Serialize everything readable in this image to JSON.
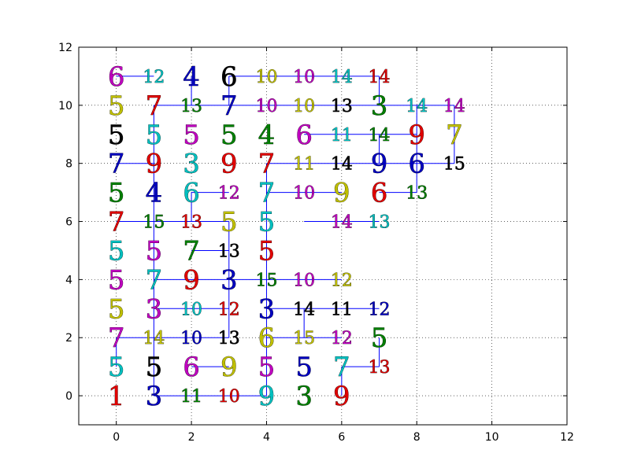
{
  "chart_data": {
    "type": "scatter",
    "title": "",
    "xlabel": "",
    "ylabel": "",
    "xlim": [
      -1,
      12
    ],
    "ylim": [
      -1,
      12
    ],
    "xticks": [
      0,
      2,
      4,
      6,
      8,
      10,
      12
    ],
    "yticks": [
      0,
      2,
      4,
      6,
      8,
      10,
      12
    ],
    "x_tick_labels": [
      "0",
      "2",
      "4",
      "6",
      "8",
      "10",
      "12"
    ],
    "y_tick_labels": [
      "0",
      "2",
      "4",
      "6",
      "8",
      "10",
      "12"
    ],
    "grid": true,
    "grid_style": "dotted",
    "line_color": "#0000ff",
    "label_colors": {
      "b": "#0000bf",
      "g": "#007f00",
      "r": "#e00000",
      "c": "#00bfbf",
      "m": "#bf00bf",
      "y": "#bfbf00",
      "k": "#000000"
    },
    "points": [
      {
        "x": 0,
        "y": 11,
        "label": "6",
        "color": "m"
      },
      {
        "x": 1,
        "y": 11,
        "label": "12",
        "color": "c"
      },
      {
        "x": 2,
        "y": 11,
        "label": "4",
        "color": "b"
      },
      {
        "x": 3,
        "y": 11,
        "label": "6",
        "color": "k"
      },
      {
        "x": 4,
        "y": 11,
        "label": "10",
        "color": "y"
      },
      {
        "x": 5,
        "y": 11,
        "label": "10",
        "color": "m"
      },
      {
        "x": 6,
        "y": 11,
        "label": "14",
        "color": "c"
      },
      {
        "x": 7,
        "y": 11,
        "label": "14",
        "color": "r"
      },
      {
        "x": 0,
        "y": 10,
        "label": "5",
        "color": "y"
      },
      {
        "x": 1,
        "y": 10,
        "label": "7",
        "color": "r"
      },
      {
        "x": 2,
        "y": 10,
        "label": "13",
        "color": "g"
      },
      {
        "x": 3,
        "y": 10,
        "label": "7",
        "color": "b"
      },
      {
        "x": 4,
        "y": 10,
        "label": "10",
        "color": "m"
      },
      {
        "x": 5,
        "y": 10,
        "label": "10",
        "color": "y"
      },
      {
        "x": 6,
        "y": 10,
        "label": "13",
        "color": "k"
      },
      {
        "x": 7,
        "y": 10,
        "label": "3",
        "color": "g"
      },
      {
        "x": 8,
        "y": 10,
        "label": "14",
        "color": "c"
      },
      {
        "x": 9,
        "y": 10,
        "label": "14",
        "color": "m"
      },
      {
        "x": 0,
        "y": 9,
        "label": "5",
        "color": "k"
      },
      {
        "x": 1,
        "y": 9,
        "label": "5",
        "color": "c"
      },
      {
        "x": 2,
        "y": 9,
        "label": "5",
        "color": "m"
      },
      {
        "x": 3,
        "y": 9,
        "label": "5",
        "color": "g"
      },
      {
        "x": 4,
        "y": 9,
        "label": "4",
        "color": "g"
      },
      {
        "x": 5,
        "y": 9,
        "label": "6",
        "color": "m"
      },
      {
        "x": 6,
        "y": 9,
        "label": "11",
        "color": "c"
      },
      {
        "x": 7,
        "y": 9,
        "label": "14",
        "color": "g"
      },
      {
        "x": 8,
        "y": 9,
        "label": "9",
        "color": "r"
      },
      {
        "x": 9,
        "y": 9,
        "label": "7",
        "color": "y"
      },
      {
        "x": 0,
        "y": 8,
        "label": "7",
        "color": "b"
      },
      {
        "x": 1,
        "y": 8,
        "label": "9",
        "color": "r"
      },
      {
        "x": 2,
        "y": 8,
        "label": "3",
        "color": "c"
      },
      {
        "x": 3,
        "y": 8,
        "label": "9",
        "color": "r"
      },
      {
        "x": 4,
        "y": 8,
        "label": "7",
        "color": "r"
      },
      {
        "x": 5,
        "y": 8,
        "label": "11",
        "color": "y"
      },
      {
        "x": 6,
        "y": 8,
        "label": "14",
        "color": "k"
      },
      {
        "x": 7,
        "y": 8,
        "label": "9",
        "color": "b"
      },
      {
        "x": 8,
        "y": 8,
        "label": "6",
        "color": "b"
      },
      {
        "x": 9,
        "y": 8,
        "label": "15",
        "color": "k"
      },
      {
        "x": 0,
        "y": 7,
        "label": "5",
        "color": "g"
      },
      {
        "x": 1,
        "y": 7,
        "label": "4",
        "color": "b"
      },
      {
        "x": 2,
        "y": 7,
        "label": "6",
        "color": "c"
      },
      {
        "x": 3,
        "y": 7,
        "label": "12",
        "color": "m"
      },
      {
        "x": 4,
        "y": 7,
        "label": "7",
        "color": "c"
      },
      {
        "x": 5,
        "y": 7,
        "label": "10",
        "color": "m"
      },
      {
        "x": 6,
        "y": 7,
        "label": "9",
        "color": "y"
      },
      {
        "x": 7,
        "y": 7,
        "label": "6",
        "color": "r"
      },
      {
        "x": 8,
        "y": 7,
        "label": "13",
        "color": "g"
      },
      {
        "x": 0,
        "y": 6,
        "label": "7",
        "color": "r"
      },
      {
        "x": 1,
        "y": 6,
        "label": "15",
        "color": "g"
      },
      {
        "x": 2,
        "y": 6,
        "label": "13",
        "color": "r"
      },
      {
        "x": 3,
        "y": 6,
        "label": "5",
        "color": "y"
      },
      {
        "x": 4,
        "y": 6,
        "label": "5",
        "color": "c"
      },
      {
        "x": 6,
        "y": 6,
        "label": "14",
        "color": "m"
      },
      {
        "x": 7,
        "y": 6,
        "label": "13",
        "color": "c"
      },
      {
        "x": 0,
        "y": 5,
        "label": "5",
        "color": "c"
      },
      {
        "x": 1,
        "y": 5,
        "label": "5",
        "color": "m"
      },
      {
        "x": 2,
        "y": 5,
        "label": "7",
        "color": "g"
      },
      {
        "x": 3,
        "y": 5,
        "label": "13",
        "color": "k"
      },
      {
        "x": 4,
        "y": 5,
        "label": "5",
        "color": "r"
      },
      {
        "x": 0,
        "y": 4,
        "label": "5",
        "color": "m"
      },
      {
        "x": 1,
        "y": 4,
        "label": "7",
        "color": "c"
      },
      {
        "x": 2,
        "y": 4,
        "label": "9",
        "color": "r"
      },
      {
        "x": 3,
        "y": 4,
        "label": "3",
        "color": "b"
      },
      {
        "x": 4,
        "y": 4,
        "label": "15",
        "color": "g"
      },
      {
        "x": 5,
        "y": 4,
        "label": "10",
        "color": "m"
      },
      {
        "x": 6,
        "y": 4,
        "label": "12",
        "color": "y"
      },
      {
        "x": 0,
        "y": 3,
        "label": "5",
        "color": "y"
      },
      {
        "x": 1,
        "y": 3,
        "label": "3",
        "color": "m"
      },
      {
        "x": 2,
        "y": 3,
        "label": "10",
        "color": "c"
      },
      {
        "x": 3,
        "y": 3,
        "label": "12",
        "color": "r"
      },
      {
        "x": 4,
        "y": 3,
        "label": "3",
        "color": "b"
      },
      {
        "x": 5,
        "y": 3,
        "label": "14",
        "color": "k"
      },
      {
        "x": 6,
        "y": 3,
        "label": "11",
        "color": "k"
      },
      {
        "x": 7,
        "y": 3,
        "label": "12",
        "color": "b"
      },
      {
        "x": 0,
        "y": 2,
        "label": "7",
        "color": "m"
      },
      {
        "x": 1,
        "y": 2,
        "label": "14",
        "color": "y"
      },
      {
        "x": 2,
        "y": 2,
        "label": "10",
        "color": "b"
      },
      {
        "x": 3,
        "y": 2,
        "label": "13",
        "color": "k"
      },
      {
        "x": 4,
        "y": 2,
        "label": "6",
        "color": "y"
      },
      {
        "x": 5,
        "y": 2,
        "label": "15",
        "color": "y"
      },
      {
        "x": 6,
        "y": 2,
        "label": "12",
        "color": "m"
      },
      {
        "x": 7,
        "y": 2,
        "label": "5",
        "color": "g"
      },
      {
        "x": 0,
        "y": 1,
        "label": "5",
        "color": "c"
      },
      {
        "x": 1,
        "y": 1,
        "label": "5",
        "color": "k"
      },
      {
        "x": 2,
        "y": 1,
        "label": "6",
        "color": "m"
      },
      {
        "x": 3,
        "y": 1,
        "label": "9",
        "color": "y"
      },
      {
        "x": 4,
        "y": 1,
        "label": "5",
        "color": "m"
      },
      {
        "x": 5,
        "y": 1,
        "label": "5",
        "color": "b"
      },
      {
        "x": 6,
        "y": 1,
        "label": "7",
        "color": "c"
      },
      {
        "x": 7,
        "y": 1,
        "label": "13",
        "color": "r"
      },
      {
        "x": 0,
        "y": 0,
        "label": "1",
        "color": "r"
      },
      {
        "x": 1,
        "y": 0,
        "label": "3",
        "color": "b"
      },
      {
        "x": 2,
        "y": 0,
        "label": "11",
        "color": "g"
      },
      {
        "x": 3,
        "y": 0,
        "label": "10",
        "color": "r"
      },
      {
        "x": 4,
        "y": 0,
        "label": "9",
        "color": "c"
      },
      {
        "x": 5,
        "y": 0,
        "label": "3",
        "color": "g"
      },
      {
        "x": 6,
        "y": 0,
        "label": "9",
        "color": "r"
      }
    ],
    "segments": [
      [
        [
          1,
          0
        ],
        [
          4,
          0
        ]
      ],
      [
        [
          1,
          0
        ],
        [
          1,
          10
        ]
      ],
      [
        [
          2,
          1
        ],
        [
          3,
          1
        ]
      ],
      [
        [
          0,
          2
        ],
        [
          3,
          2
        ]
      ],
      [
        [
          3,
          2
        ],
        [
          3,
          6
        ]
      ],
      [
        [
          4,
          0
        ],
        [
          4,
          8
        ]
      ],
      [
        [
          4,
          2
        ],
        [
          6,
          2
        ]
      ],
      [
        [
          6,
          0
        ],
        [
          6,
          1
        ]
      ],
      [
        [
          6,
          1
        ],
        [
          7,
          1
        ]
      ],
      [
        [
          7,
          1
        ],
        [
          7,
          2
        ]
      ],
      [
        [
          1,
          3
        ],
        [
          3,
          3
        ]
      ],
      [
        [
          4,
          3
        ],
        [
          7,
          3
        ]
      ],
      [
        [
          5,
          2
        ],
        [
          5,
          3
        ]
      ],
      [
        [
          1,
          4
        ],
        [
          6,
          4
        ]
      ],
      [
        [
          2,
          5
        ],
        [
          3,
          5
        ]
      ],
      [
        [
          0,
          6
        ],
        [
          3,
          6
        ]
      ],
      [
        [
          5,
          6
        ],
        [
          7,
          6
        ]
      ],
      [
        [
          2,
          6
        ],
        [
          2,
          7
        ]
      ],
      [
        [
          2,
          7
        ],
        [
          3,
          7
        ]
      ],
      [
        [
          4,
          7
        ],
        [
          6,
          7
        ]
      ],
      [
        [
          7,
          7
        ],
        [
          8,
          7
        ]
      ],
      [
        [
          0,
          8
        ],
        [
          1,
          8
        ]
      ],
      [
        [
          4,
          8
        ],
        [
          9,
          8
        ]
      ],
      [
        [
          8,
          7
        ],
        [
          8,
          10
        ]
      ],
      [
        [
          7,
          8
        ],
        [
          7,
          9
        ]
      ],
      [
        [
          5,
          9
        ],
        [
          8,
          9
        ]
      ],
      [
        [
          9,
          8
        ],
        [
          9,
          10
        ]
      ],
      [
        [
          1,
          10
        ],
        [
          9,
          10
        ]
      ],
      [
        [
          0,
          11
        ],
        [
          1,
          11
        ]
      ],
      [
        [
          2,
          11
        ],
        [
          2,
          10
        ]
      ],
      [
        [
          3,
          11
        ],
        [
          3,
          10
        ]
      ],
      [
        [
          3,
          11
        ],
        [
          7,
          11
        ]
      ],
      [
        [
          7,
          10
        ],
        [
          7,
          11
        ]
      ],
      [
        [
          0,
          1
        ],
        [
          0,
          2
        ]
      ]
    ]
  }
}
